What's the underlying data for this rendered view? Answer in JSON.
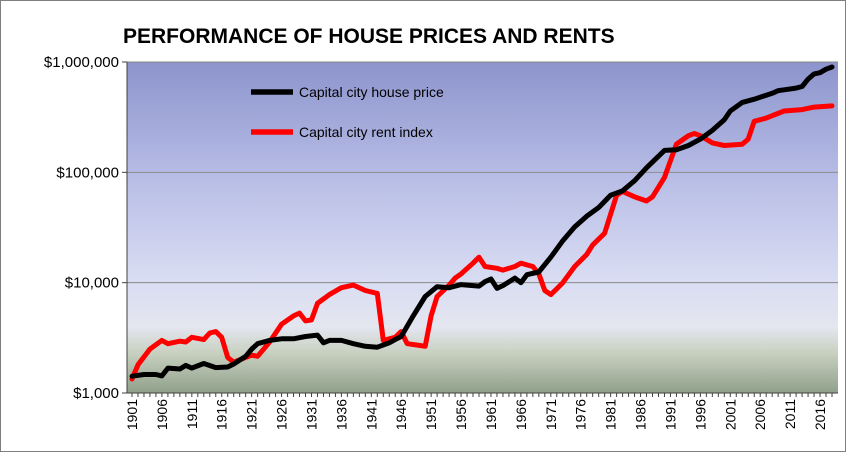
{
  "chart_data": {
    "type": "line",
    "title": "PERFORMANCE OF HOUSE PRICES AND RENTS",
    "xlabel": "",
    "ylabel": "",
    "yscale": "log",
    "ylim": [
      1000,
      1000000
    ],
    "xlim": [
      1901,
      2018
    ],
    "grid": "horizontal",
    "legend_position": "top-left",
    "y_ticks": [
      1000,
      10000,
      100000,
      1000000
    ],
    "y_tick_labels": [
      "$1,000",
      "$10,000",
      "$100,000",
      "$1,000,000"
    ],
    "x_tick_labels": [
      "1901",
      "1906",
      "1911",
      "1916",
      "1921",
      "1926",
      "1931",
      "1936",
      "1941",
      "1946",
      "1951",
      "1956",
      "1961",
      "1966",
      "1971",
      "1976",
      "1981",
      "1986",
      "1991",
      "1996",
      "2001",
      "2006",
      "2011",
      "2016"
    ],
    "series": [
      {
        "name": "Capital city house price",
        "color": "#000000",
        "points": [
          [
            1901,
            1420
          ],
          [
            1903,
            1470
          ],
          [
            1905,
            1470
          ],
          [
            1906,
            1430
          ],
          [
            1907,
            1680
          ],
          [
            1909,
            1650
          ],
          [
            1910,
            1780
          ],
          [
            1911,
            1680
          ],
          [
            1913,
            1850
          ],
          [
            1915,
            1700
          ],
          [
            1917,
            1720
          ],
          [
            1918,
            1830
          ],
          [
            1920,
            2150
          ],
          [
            1921,
            2500
          ],
          [
            1922,
            2800
          ],
          [
            1924,
            3000
          ],
          [
            1926,
            3100
          ],
          [
            1928,
            3100
          ],
          [
            1930,
            3250
          ],
          [
            1932,
            3350
          ],
          [
            1933,
            2850
          ],
          [
            1934,
            3000
          ],
          [
            1936,
            3000
          ],
          [
            1938,
            2800
          ],
          [
            1940,
            2650
          ],
          [
            1942,
            2600
          ],
          [
            1944,
            2850
          ],
          [
            1945,
            3050
          ],
          [
            1946,
            3250
          ],
          [
            1948,
            5000
          ],
          [
            1950,
            7500
          ],
          [
            1952,
            9200
          ],
          [
            1954,
            9000
          ],
          [
            1956,
            9600
          ],
          [
            1958,
            9400
          ],
          [
            1959,
            9300
          ],
          [
            1960,
            10200
          ],
          [
            1961,
            10800
          ],
          [
            1962,
            8900
          ],
          [
            1963,
            9400
          ],
          [
            1965,
            11000
          ],
          [
            1966,
            10000
          ],
          [
            1967,
            11800
          ],
          [
            1969,
            12500
          ],
          [
            1971,
            17000
          ],
          [
            1973,
            24000
          ],
          [
            1975,
            32000
          ],
          [
            1977,
            40000
          ],
          [
            1979,
            48000
          ],
          [
            1981,
            62000
          ],
          [
            1983,
            68000
          ],
          [
            1985,
            84000
          ],
          [
            1987,
            110000
          ],
          [
            1989,
            140000
          ],
          [
            1990,
            158000
          ],
          [
            1992,
            160000
          ],
          [
            1994,
            175000
          ],
          [
            1996,
            200000
          ],
          [
            1998,
            240000
          ],
          [
            2000,
            300000
          ],
          [
            2001,
            360000
          ],
          [
            2003,
            430000
          ],
          [
            2005,
            460000
          ],
          [
            2007,
            500000
          ],
          [
            2008,
            520000
          ],
          [
            2009,
            550000
          ],
          [
            2010,
            560000
          ],
          [
            2012,
            580000
          ],
          [
            2013,
            600000
          ],
          [
            2014,
            700000
          ],
          [
            2015,
            780000
          ],
          [
            2016,
            800000
          ],
          [
            2017,
            860000
          ],
          [
            2018,
            900000
          ]
        ]
      },
      {
        "name": "Capital city rent index",
        "color": "#ff0000",
        "points": [
          [
            1901,
            1340
          ],
          [
            1902,
            1800
          ],
          [
            1904,
            2500
          ],
          [
            1906,
            3000
          ],
          [
            1907,
            2800
          ],
          [
            1909,
            2950
          ],
          [
            1910,
            2900
          ],
          [
            1911,
            3200
          ],
          [
            1913,
            3050
          ],
          [
            1914,
            3500
          ],
          [
            1915,
            3600
          ],
          [
            1916,
            3200
          ],
          [
            1917,
            2100
          ],
          [
            1918,
            1900
          ],
          [
            1920,
            2100
          ],
          [
            1921,
            2200
          ],
          [
            1922,
            2150
          ],
          [
            1924,
            2900
          ],
          [
            1926,
            4200
          ],
          [
            1928,
            5000
          ],
          [
            1929,
            5300
          ],
          [
            1930,
            4500
          ],
          [
            1931,
            4600
          ],
          [
            1932,
            6500
          ],
          [
            1934,
            7800
          ],
          [
            1936,
            9000
          ],
          [
            1938,
            9500
          ],
          [
            1940,
            8500
          ],
          [
            1942,
            8000
          ],
          [
            1943,
            3000
          ],
          [
            1945,
            3200
          ],
          [
            1946,
            3600
          ],
          [
            1947,
            2800
          ],
          [
            1949,
            2700
          ],
          [
            1950,
            2650
          ],
          [
            1951,
            5000
          ],
          [
            1952,
            7500
          ],
          [
            1954,
            9500
          ],
          [
            1955,
            11000
          ],
          [
            1956,
            12000
          ],
          [
            1958,
            15000
          ],
          [
            1959,
            17000
          ],
          [
            1960,
            14000
          ],
          [
            1962,
            13500
          ],
          [
            1963,
            13000
          ],
          [
            1965,
            14000
          ],
          [
            1966,
            15000
          ],
          [
            1967,
            14500
          ],
          [
            1968,
            14000
          ],
          [
            1969,
            12000
          ],
          [
            1970,
            8500
          ],
          [
            1971,
            7800
          ],
          [
            1972,
            8800
          ],
          [
            1973,
            10000
          ],
          [
            1975,
            14000
          ],
          [
            1977,
            18000
          ],
          [
            1978,
            22000
          ],
          [
            1980,
            28000
          ],
          [
            1982,
            62000
          ],
          [
            1983,
            67000
          ],
          [
            1985,
            60000
          ],
          [
            1987,
            55000
          ],
          [
            1988,
            60000
          ],
          [
            1990,
            90000
          ],
          [
            1992,
            180000
          ],
          [
            1994,
            215000
          ],
          [
            1995,
            225000
          ],
          [
            1996,
            215000
          ],
          [
            1998,
            185000
          ],
          [
            2000,
            175000
          ],
          [
            2003,
            180000
          ],
          [
            2004,
            200000
          ],
          [
            2005,
            290000
          ],
          [
            2007,
            310000
          ],
          [
            2010,
            360000
          ],
          [
            2013,
            370000
          ],
          [
            2015,
            390000
          ],
          [
            2018,
            400000
          ]
        ]
      }
    ]
  }
}
